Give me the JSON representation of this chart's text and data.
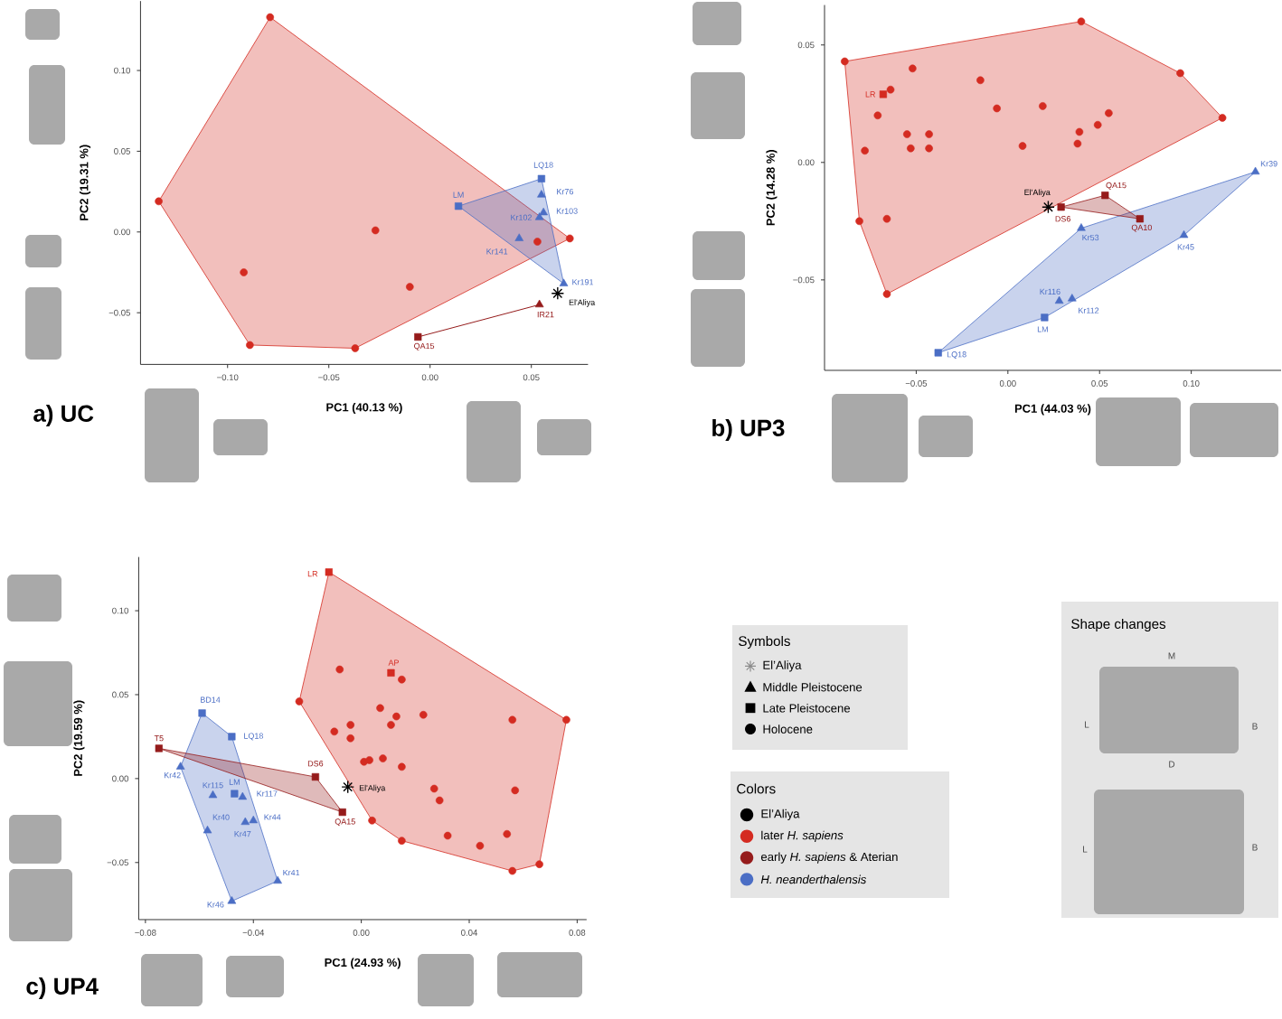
{
  "chart_data": [
    {
      "type": "scatter",
      "title": "a) UC",
      "xlabel": "PC1 (40.13 %)",
      "ylabel": "PC2 (19.31 %)",
      "xlim": [
        -0.143,
        0.078
      ],
      "ylim": [
        -0.082,
        0.143
      ],
      "xticks": [
        {
          "value": -0.1,
          "label": "−0.10"
        },
        {
          "value": -0.05,
          "label": "−0.05"
        },
        {
          "value": 0,
          "label": "0.00"
        },
        {
          "value": 0.05,
          "label": "0.05"
        }
      ],
      "yticks": [
        {
          "value": -0.05,
          "label": "−0.05"
        },
        {
          "value": 0,
          "label": "0.00"
        },
        {
          "value": 0.05,
          "label": "0.05"
        },
        {
          "value": 0.1,
          "label": "0.10"
        }
      ],
      "series": [
        {
          "type": "area",
          "color": "#d42b21",
          "x": [
            -0.079,
            0.069,
            -0.037,
            -0.089,
            -0.134
          ],
          "values": [
            0.133,
            -0.004,
            -0.072,
            -0.07,
            0.019
          ]
        },
        {
          "type": "area",
          "color": "#4b6ec5",
          "x": [
            0.014,
            0.055,
            0.066
          ],
          "values": [
            0.016,
            0.033,
            -0.032
          ]
        },
        {
          "type": "line",
          "color": "#951b1b",
          "x": [
            -0.006,
            0.054
          ],
          "values": [
            -0.065,
            -0.045
          ]
        },
        {
          "type": "scatter",
          "marker": "circle",
          "color": "#d42b21",
          "x": [
            -0.079,
            -0.134,
            -0.027,
            -0.092,
            -0.01,
            -0.089,
            -0.037,
            0.053,
            0.069
          ],
          "values": [
            0.133,
            0.019,
            0.001,
            -0.025,
            -0.034,
            -0.07,
            -0.072,
            -0.006,
            -0.004
          ]
        },
        {
          "type": "scatter",
          "marker": "square",
          "color": "#951b1b",
          "x": [
            -0.006
          ],
          "values": [
            -0.065
          ]
        },
        {
          "type": "scatter",
          "marker": "triangle",
          "color": "#951b1b",
          "x": [
            0.054
          ],
          "values": [
            -0.045
          ]
        },
        {
          "type": "scatter",
          "marker": "square",
          "color": "#4b6ec5",
          "x": [
            0.014,
            0.055
          ],
          "values": [
            0.016,
            0.033
          ]
        },
        {
          "type": "scatter",
          "marker": "triangle",
          "color": "#4b6ec5",
          "x": [
            0.044,
            0.054,
            0.055,
            0.056,
            0.066
          ],
          "values": [
            -0.004,
            0.009,
            0.023,
            0.012,
            -0.032
          ]
        },
        {
          "type": "scatter",
          "marker": "cross",
          "color": "#000000",
          "x": [
            0.063
          ],
          "values": [
            -0.038
          ]
        }
      ],
      "annotations": [
        {
          "text": "LM",
          "x": 0.014,
          "y": 0.016
        },
        {
          "text": "LQ18",
          "x": 0.055,
          "y": 0.033
        },
        {
          "text": "Kr76",
          "x": 0.055,
          "y": 0.023
        },
        {
          "text": "Kr103",
          "x": 0.056,
          "y": 0.012
        },
        {
          "text": "Kr102",
          "x": 0.054,
          "y": 0.009
        },
        {
          "text": "Kr141",
          "x": 0.044,
          "y": -0.004
        },
        {
          "text": "Kr191",
          "x": 0.066,
          "y": -0.032
        },
        {
          "text": "El'Aliya",
          "x": 0.063,
          "y": -0.038
        },
        {
          "text": "IR21",
          "x": 0.054,
          "y": -0.045
        },
        {
          "text": "QA15",
          "x": -0.006,
          "y": -0.065
        }
      ]
    },
    {
      "type": "scatter",
      "title": "b) UP3",
      "xlabel": "PC1 (44.03 %)",
      "ylabel": "PC2 (14.28 %)",
      "xlim": [
        -0.1,
        0.149
      ],
      "ylim": [
        -0.0885,
        0.067
      ],
      "xticks": [
        {
          "value": -0.05,
          "label": "−0.05"
        },
        {
          "value": 0,
          "label": "0.00"
        },
        {
          "value": 0.05,
          "label": "0.05"
        },
        {
          "value": 0.1,
          "label": "0.10"
        }
      ],
      "yticks": [
        {
          "value": -0.05,
          "label": "−0.05"
        },
        {
          "value": 0,
          "label": "0.00"
        },
        {
          "value": 0.05,
          "label": "0.05"
        }
      ],
      "series": [
        {
          "type": "area",
          "color": "#d42b21",
          "x": [
            -0.089,
            0.04,
            0.094,
            0.117,
            -0.066,
            -0.081
          ],
          "values": [
            0.043,
            0.06,
            0.038,
            0.019,
            -0.056,
            -0.025
          ]
        },
        {
          "type": "area",
          "color": "#4b6ec5",
          "x": [
            -0.038,
            0.04,
            0.135,
            0.096,
            0.02
          ],
          "values": [
            -0.081,
            -0.028,
            -0.004,
            -0.031,
            -0.066
          ]
        },
        {
          "type": "area",
          "color": "#951b1b",
          "x": [
            0.029,
            0.053,
            0.072
          ],
          "values": [
            -0.019,
            -0.014,
            -0.024
          ]
        },
        {
          "type": "scatter",
          "marker": "circle",
          "color": "#d42b21",
          "x": [
            -0.089,
            0.04,
            0.094,
            0.117,
            -0.052,
            -0.064,
            -0.071,
            -0.078,
            -0.055,
            -0.043,
            -0.053,
            -0.043,
            -0.015,
            -0.006,
            0.019,
            0.008,
            0.039,
            0.038,
            0.049,
            0.055,
            -0.081,
            -0.066,
            -0.066
          ],
          "values": [
            0.043,
            0.06,
            0.038,
            0.019,
            0.04,
            0.031,
            0.02,
            0.005,
            0.012,
            0.012,
            0.006,
            0.006,
            0.035,
            0.023,
            0.024,
            0.007,
            0.013,
            0.008,
            0.016,
            0.021,
            -0.025,
            -0.024,
            -0.056
          ]
        },
        {
          "type": "scatter",
          "marker": "square",
          "color": "#d42b21",
          "x": [
            -0.068
          ],
          "values": [
            0.029
          ]
        },
        {
          "type": "scatter",
          "marker": "square",
          "color": "#951b1b",
          "x": [
            0.053,
            0.029,
            0.072
          ],
          "values": [
            -0.014,
            -0.019,
            -0.024
          ]
        },
        {
          "type": "scatter",
          "marker": "triangle",
          "color": "#4b6ec5",
          "x": [
            0.135,
            0.04,
            0.096,
            0.028,
            0.035
          ],
          "values": [
            -0.004,
            -0.028,
            -0.031,
            -0.059,
            -0.058
          ]
        },
        {
          "type": "scatter",
          "marker": "square",
          "color": "#4b6ec5",
          "x": [
            0.02,
            -0.038
          ],
          "values": [
            -0.066,
            -0.081
          ]
        },
        {
          "type": "scatter",
          "marker": "cross",
          "color": "#000000",
          "x": [
            0.022
          ],
          "values": [
            -0.019
          ]
        }
      ],
      "annotations": [
        {
          "text": "LR",
          "x": -0.068,
          "y": 0.029
        },
        {
          "text": "El'Aliya",
          "x": 0.022,
          "y": -0.019
        },
        {
          "text": "DS6",
          "x": 0.029,
          "y": -0.019
        },
        {
          "text": "QA15",
          "x": 0.053,
          "y": -0.014
        },
        {
          "text": "QA10",
          "x": 0.072,
          "y": -0.024
        },
        {
          "text": "Kr39",
          "x": 0.135,
          "y": -0.004
        },
        {
          "text": "Kr53",
          "x": 0.04,
          "y": -0.028
        },
        {
          "text": "Kr45",
          "x": 0.096,
          "y": -0.031
        },
        {
          "text": "Kr116",
          "x": 0.028,
          "y": -0.059
        },
        {
          "text": "Kr112",
          "x": 0.035,
          "y": -0.058
        },
        {
          "text": "LM",
          "x": 0.02,
          "y": -0.066
        },
        {
          "text": "LQ18",
          "x": -0.038,
          "y": -0.081
        }
      ]
    },
    {
      "type": "scatter",
      "title": "c) UP4",
      "xlabel": "PC1 (24.93 %)",
      "ylabel": "PC2 (19.59 %)",
      "xlim": [
        -0.0825,
        0.0835
      ],
      "ylim": [
        -0.084,
        0.132
      ],
      "xticks": [
        {
          "value": -0.08,
          "label": "−0.08"
        },
        {
          "value": -0.04,
          "label": "−0.04"
        },
        {
          "value": 0,
          "label": "0.00"
        },
        {
          "value": 0.04,
          "label": "0.04"
        },
        {
          "value": 0.08,
          "label": "0.08"
        }
      ],
      "yticks": [
        {
          "value": -0.05,
          "label": "−0.05"
        },
        {
          "value": 0,
          "label": "0.00"
        },
        {
          "value": 0.05,
          "label": "0.05"
        },
        {
          "value": 0.1,
          "label": "0.10"
        }
      ],
      "series": [
        {
          "type": "area",
          "color": "#d42b21",
          "x": [
            -0.012,
            0.076,
            0.066,
            0.056,
            0.015,
            0.004,
            -0.023
          ],
          "values": [
            0.123,
            0.035,
            -0.051,
            -0.055,
            -0.037,
            -0.025,
            0.046
          ]
        },
        {
          "type": "area",
          "color": "#4b6ec5",
          "x": [
            -0.059,
            -0.048,
            -0.031,
            -0.048,
            -0.067
          ],
          "values": [
            0.039,
            0.025,
            -0.061,
            -0.073,
            0.007
          ]
        },
        {
          "type": "area",
          "color": "#951b1b",
          "x": [
            -0.075,
            -0.017,
            -0.007
          ],
          "values": [
            0.018,
            0.001,
            -0.02
          ]
        },
        {
          "type": "scatter",
          "marker": "circle",
          "color": "#d42b21",
          "x": [
            -0.023,
            -0.008,
            0.015,
            0.007,
            0.013,
            0.011,
            -0.004,
            -0.01,
            -0.004,
            0.023,
            0.001,
            0.003,
            0.008,
            0.015,
            0.027,
            0.029,
            0.004,
            0.015,
            0.032,
            0.044,
            0.054,
            0.056,
            0.076,
            0.057,
            0.056,
            0.066
          ],
          "values": [
            0.046,
            0.065,
            0.059,
            0.042,
            0.037,
            0.032,
            0.032,
            0.028,
            0.024,
            0.038,
            0.01,
            0.011,
            0.012,
            0.007,
            -0.006,
            -0.013,
            -0.025,
            -0.037,
            -0.034,
            -0.04,
            -0.033,
            0.035,
            0.035,
            -0.007,
            -0.055,
            -0.051
          ]
        },
        {
          "type": "scatter",
          "marker": "square",
          "color": "#d42b21",
          "x": [
            -0.012,
            0.011
          ],
          "values": [
            0.123,
            0.063
          ]
        },
        {
          "type": "scatter",
          "marker": "square",
          "color": "#951b1b",
          "x": [
            -0.075,
            -0.017,
            -0.007
          ],
          "values": [
            0.018,
            0.001,
            -0.02
          ]
        },
        {
          "type": "scatter",
          "marker": "square",
          "color": "#4b6ec5",
          "x": [
            -0.059,
            -0.048,
            -0.047
          ],
          "values": [
            0.039,
            0.025,
            -0.009
          ]
        },
        {
          "type": "scatter",
          "marker": "triangle",
          "color": "#4b6ec5",
          "x": [
            -0.067,
            -0.055,
            -0.044,
            -0.057,
            -0.043,
            -0.04,
            -0.031,
            -0.048
          ],
          "values": [
            0.007,
            -0.01,
            -0.011,
            -0.031,
            -0.026,
            -0.025,
            -0.061,
            -0.073
          ]
        },
        {
          "type": "scatter",
          "marker": "cross",
          "color": "#000000",
          "x": [
            -0.005
          ],
          "values": [
            -0.005
          ]
        }
      ],
      "annotations": [
        {
          "text": "LR",
          "x": -0.012,
          "y": 0.123
        },
        {
          "text": "AP",
          "x": 0.011,
          "y": 0.063
        },
        {
          "text": "T5",
          "x": -0.075,
          "y": 0.018
        },
        {
          "text": "DS6",
          "x": -0.017,
          "y": 0.001
        },
        {
          "text": "QA15",
          "x": -0.007,
          "y": -0.02
        },
        {
          "text": "El'Aliya",
          "x": -0.005,
          "y": -0.005
        },
        {
          "text": "BD14",
          "x": -0.059,
          "y": 0.039
        },
        {
          "text": "LQ18",
          "x": -0.048,
          "y": 0.025
        },
        {
          "text": "Kr42",
          "x": -0.067,
          "y": 0.007
        },
        {
          "text": "Kr115",
          "x": -0.055,
          "y": -0.01
        },
        {
          "text": "LM",
          "x": -0.047,
          "y": -0.009
        },
        {
          "text": "Kr117",
          "x": -0.044,
          "y": -0.011
        },
        {
          "text": "Kr40",
          "x": -0.057,
          "y": -0.031
        },
        {
          "text": "Kr47",
          "x": -0.043,
          "y": -0.026
        },
        {
          "text": "Kr44",
          "x": -0.04,
          "y": -0.025
        },
        {
          "text": "Kr41",
          "x": -0.031,
          "y": -0.061
        },
        {
          "text": "Kr46",
          "x": -0.048,
          "y": -0.073
        }
      ]
    },
    {
      "type": "other",
      "title": "Symbols",
      "series": [
        {
          "name": "El’Aliya",
          "marker": "cross",
          "color": "#8c8c8c"
        },
        {
          "name": "Middle Pleistocene",
          "marker": "triangle",
          "color": "#000000"
        },
        {
          "name": "Late Pleistocene",
          "marker": "square",
          "color": "#000000"
        },
        {
          "name": "Holocene",
          "marker": "circle",
          "color": "#000000"
        }
      ]
    },
    {
      "type": "other",
      "title": "Colors",
      "series": [
        {
          "name": "El’Aliya",
          "marker": "circle",
          "color": "#000000"
        },
        {
          "name": "later *H. sapiens*",
          "marker": "circle",
          "color": "#d42b21"
        },
        {
          "name": "early *H. sapiens* & Aterian",
          "marker": "circle",
          "color": "#951b1b"
        },
        {
          "name": "*H. neanderthalensis*",
          "marker": "circle",
          "color": "#4b6ec5"
        }
      ]
    },
    {
      "type": "other",
      "title": "Shape changes",
      "annotations": [
        "M",
        "L",
        "B",
        "D",
        "L",
        "B"
      ]
    }
  ]
}
